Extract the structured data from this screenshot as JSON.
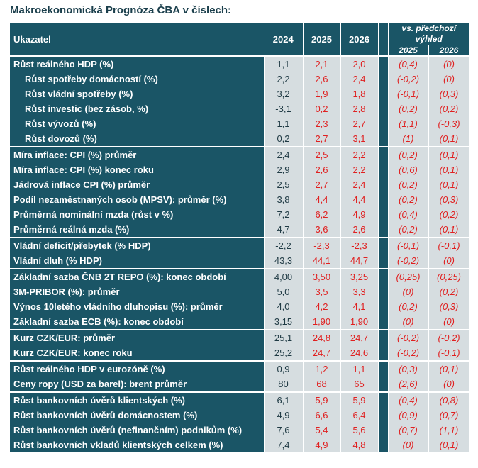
{
  "title": "Makroekonomická Prognóza ČBA v číslech:",
  "header": {
    "indicator": "Ukazatel",
    "years": [
      "2024",
      "2025",
      "2026"
    ],
    "vs_label": "vs. předchozí výhled",
    "vs_years": [
      "2025",
      "2026"
    ]
  },
  "groups": [
    {
      "rows": [
        {
          "label": "Růst reálného HDP (%)",
          "sub": false,
          "v2024": "1,1",
          "v2025": "2,1",
          "v2026": "2,0",
          "d2025": "(0,4)",
          "d2026": "(0)"
        },
        {
          "label": "Růst spotřeby domácností (%)",
          "sub": true,
          "v2024": "2,2",
          "v2025": "2,6",
          "v2026": "2,4",
          "d2025": "(-0,2)",
          "d2026": "(0)"
        },
        {
          "label": "Růst vládní spotřeby (%)",
          "sub": true,
          "v2024": "3,2",
          "v2025": "1,9",
          "v2026": "1,8",
          "d2025": "(-0,1)",
          "d2026": "(0,3)"
        },
        {
          "label": "Růst investic (bez zásob, %)",
          "sub": true,
          "v2024": "-3,1",
          "v2025": "0,2",
          "v2026": "2,8",
          "d2025": "(0,2)",
          "d2026": "(0,2)"
        },
        {
          "label": "Růst vývozů (%)",
          "sub": true,
          "v2024": "1,1",
          "v2025": "2,3",
          "v2026": "2,7",
          "d2025": "(1,1)",
          "d2026": "(-0,3)"
        },
        {
          "label": "Růst dovozů (%)",
          "sub": true,
          "v2024": "0,2",
          "v2025": "2,7",
          "v2026": "3,1",
          "d2025": "(1)",
          "d2026": "(0,1)"
        }
      ]
    },
    {
      "rows": [
        {
          "label": "Míra inflace: CPI (%) průměr",
          "sub": false,
          "v2024": "2,4",
          "v2025": "2,5",
          "v2026": "2,2",
          "d2025": "(0,2)",
          "d2026": "(0,1)"
        },
        {
          "label": "Míra inflace: CPI (%) konec roku",
          "sub": false,
          "v2024": "2,9",
          "v2025": "2,6",
          "v2026": "2,2",
          "d2025": "(0,6)",
          "d2026": "(0,1)"
        },
        {
          "label": "Jádrová inflace CPI (%) průměr",
          "sub": false,
          "v2024": "2,5",
          "v2025": "2,7",
          "v2026": "2,4",
          "d2025": "(0,2)",
          "d2026": "(0,1)"
        },
        {
          "label": "Podíl nezaměstnaných osob (MPSV): průměr (%)",
          "sub": false,
          "v2024": "3,8",
          "v2025": "4,4",
          "v2026": "4,4",
          "d2025": "(0,2)",
          "d2026": "(0,3)"
        },
        {
          "label": "Průměrná nominální mzda (růst v %)",
          "sub": false,
          "v2024": "7,2",
          "v2025": "6,2",
          "v2026": "4,9",
          "d2025": "(0,4)",
          "d2026": "(0,2)"
        },
        {
          "label": "Průměrná reálná mzda (%)",
          "sub": false,
          "v2024": "4,7",
          "v2025": "3,6",
          "v2026": "2,6",
          "d2025": "(0,2)",
          "d2026": "(0,1)"
        }
      ]
    },
    {
      "rows": [
        {
          "label": "Vládní deficit/přebytek (% HDP)",
          "sub": false,
          "v2024": "-2,2",
          "v2025": "-2,3",
          "v2026": "-2,3",
          "d2025": "(-0,1)",
          "d2026": "(-0,1)"
        },
        {
          "label": "Vládní dluh (% HDP)",
          "sub": false,
          "v2024": "43,3",
          "v2025": "44,1",
          "v2026": "44,7",
          "d2025": "(-0,2)",
          "d2026": "(0)"
        }
      ]
    },
    {
      "rows": [
        {
          "label": "Základní sazba ČNB 2T REPO (%): konec období",
          "sub": false,
          "v2024": "4,00",
          "v2025": "3,50",
          "v2026": "3,25",
          "d2025": "(0,25)",
          "d2026": "(0,25)"
        },
        {
          "label": "3M-PRIBOR (%): průměr",
          "sub": false,
          "v2024": "5,0",
          "v2025": "3,5",
          "v2026": "3,3",
          "d2025": "(0)",
          "d2026": "(0,2)"
        },
        {
          "label": "Výnos 10letého vládního dluhopisu (%): průměr",
          "sub": false,
          "v2024": "4,0",
          "v2025": "4,2",
          "v2026": "4,1",
          "d2025": "(0,2)",
          "d2026": "(0,3)"
        },
        {
          "label": "Základní sazba ECB (%): konec období",
          "sub": false,
          "v2024": "3,15",
          "v2025": "1,90",
          "v2026": "1,90",
          "d2025": "(0)",
          "d2026": "(0)"
        }
      ]
    },
    {
      "rows": [
        {
          "label": "Kurz CZK/EUR: průměr",
          "sub": false,
          "v2024": "25,1",
          "v2025": "24,8",
          "v2026": "24,7",
          "d2025": "(-0,2)",
          "d2026": "(-0,2)"
        },
        {
          "label": "Kurz CZK/EUR: konec roku",
          "sub": false,
          "v2024": "25,2",
          "v2025": "24,7",
          "v2026": "24,6",
          "d2025": "(-0,2)",
          "d2026": "(-0,1)"
        }
      ]
    },
    {
      "rows": [
        {
          "label": "Růst reálného HDP v eurozóně (%)",
          "sub": false,
          "v2024": "0,9",
          "v2025": "1,2",
          "v2026": "1,1",
          "d2025": "(0,3)",
          "d2026": "(0,1)"
        },
        {
          "label": "Ceny ropy (USD za barel): brent průměr",
          "sub": false,
          "v2024": "80",
          "v2025": "68",
          "v2026": "65",
          "d2025": "(2,6)",
          "d2026": "(0)"
        }
      ]
    },
    {
      "rows": [
        {
          "label": "Růst bankovních úvěrů klientských (%)",
          "sub": false,
          "v2024": "6,1",
          "v2025": "5,9",
          "v2026": "5,9",
          "d2025": "(0,4)",
          "d2026": "(0,8)"
        },
        {
          "label": "Růst bankovních úvěrů domácnostem (%)",
          "sub": false,
          "v2024": "4,9",
          "v2025": "6,6",
          "v2026": "6,4",
          "d2025": "(0,9)",
          "d2026": "(0,7)"
        },
        {
          "label": "Růst bankovních úvěrů (nefinančním) podnikům (%)",
          "sub": false,
          "v2024": "7,6",
          "v2025": "5,4",
          "v2026": "5,6",
          "d2025": "(0,7)",
          "d2026": "(1,1)"
        },
        {
          "label": "Růst bankovních vkladů klientských celkem (%)",
          "sub": false,
          "v2024": "7,4",
          "v2025": "4,9",
          "v2026": "4,8",
          "d2025": "(0)",
          "d2026": "(0,1)"
        }
      ]
    }
  ],
  "colors": {
    "header_bg": "#1a5566",
    "cell_bg": "#d6dde0",
    "forecast_red": "#e02020"
  }
}
